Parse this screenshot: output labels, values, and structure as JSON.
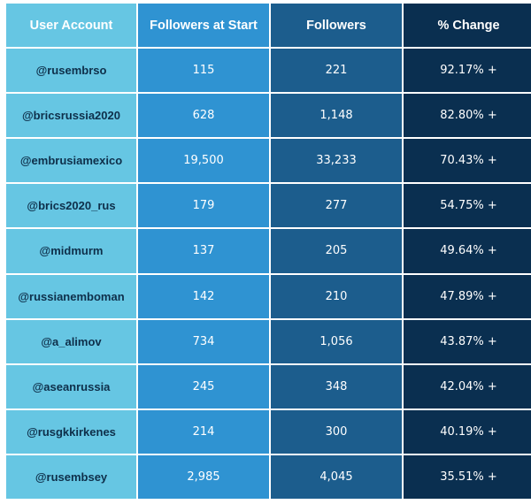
{
  "chart_data": {
    "type": "table",
    "columns": [
      "User Account",
      "Followers at Start",
      "Followers",
      "% Change"
    ],
    "rows": [
      {
        "account": "@rusembrso",
        "start": "115",
        "followers": "221",
        "change": "92.17% +"
      },
      {
        "account": "@bricsrussia2020",
        "start": "628",
        "followers": "1,148",
        "change": "82.80% +"
      },
      {
        "account": "@embrusiamexico",
        "start": "19,500",
        "followers": "33,233",
        "change": "70.43% +"
      },
      {
        "account": "@brics2020_rus",
        "start": "179",
        "followers": "277",
        "change": "54.75% +"
      },
      {
        "account": "@midmurm",
        "start": "137",
        "followers": "205",
        "change": "49.64% +"
      },
      {
        "account": "@russianemboman",
        "start": "142",
        "followers": "210",
        "change": "47.89% +"
      },
      {
        "account": "@a_alimov",
        "start": "734",
        "followers": "1,056",
        "change": "43.87% +"
      },
      {
        "account": "@aseanrussia",
        "start": "245",
        "followers": "348",
        "change": "42.04% +"
      },
      {
        "account": "@rusgkkirkenes",
        "start": "214",
        "followers": "300",
        "change": "40.19% +"
      },
      {
        "account": "@rusembsey",
        "start": "2,985",
        "followers": "4,045",
        "change": "35.51% +"
      }
    ],
    "column_colors": [
      "#66c6e3",
      "#2f93d2",
      "#1c5d8d",
      "#0a2f50"
    ]
  }
}
